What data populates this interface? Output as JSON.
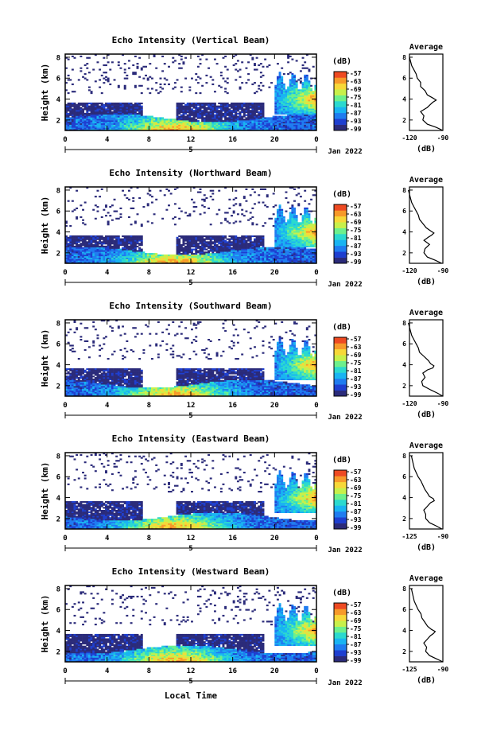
{
  "colors": {
    "colormap": [
      "#2b2b7a",
      "#1e3fd0",
      "#1f7cf0",
      "#19b4f2",
      "#2bd9cf",
      "#6df08c",
      "#c8f04a",
      "#f7d838",
      "#f79a2a",
      "#ee4a22"
    ],
    "background": "#ffffff",
    "ink": "#000000"
  },
  "footer": {
    "xlabel": "Local Time"
  },
  "chart_data": [
    {
      "type": "heatmap",
      "title": "Echo Intensity (Vertical Beam)",
      "ylabel": "Height (km)",
      "xlim": [
        0,
        24
      ],
      "ylim": [
        1,
        8.3
      ],
      "xticks": [
        "0",
        "4",
        "8",
        "12",
        "16",
        "20",
        "0"
      ],
      "yticks": [
        "2",
        "4",
        "6",
        "8"
      ],
      "date_marker": "5",
      "date_label": "Jan 2022",
      "colorbar": {
        "label": "(dB)",
        "ticks": [
          "-57",
          "-63",
          "-69",
          "-75",
          "-81",
          "-87",
          "-93",
          "-99"
        ],
        "range": [
          -99,
          -57
        ]
      },
      "profile": {
        "title": "Average",
        "xlabel": "(dB)",
        "xticks": [
          "-120",
          "-90"
        ],
        "xlim": [
          -120,
          -90
        ],
        "ylim": [
          1,
          8.3
        ],
        "yticks": [
          "2",
          "4",
          "6",
          "8"
        ],
        "heights": [
          1.0,
          1.3,
          1.6,
          2.0,
          2.4,
          2.8,
          3.2,
          3.5,
          3.7,
          3.9,
          4.1,
          4.4,
          4.8,
          5.2,
          5.6,
          6.0,
          6.4,
          6.8,
          7.2,
          7.6,
          8.0
        ],
        "values": [
          -90,
          -96,
          -104,
          -108,
          -107,
          -110,
          -104,
          -101,
          -99,
          -96,
          -99,
          -104,
          -106,
          -110,
          -110,
          -113,
          -114,
          -116,
          -118,
          -119,
          -120
        ]
      }
    },
    {
      "type": "heatmap",
      "title": "Echo Intensity (Northward Beam)",
      "ylabel": "Height (km)",
      "xlim": [
        0,
        24
      ],
      "ylim": [
        1,
        8.3
      ],
      "xticks": [
        "0",
        "4",
        "8",
        "12",
        "16",
        "20",
        "0"
      ],
      "yticks": [
        "2",
        "4",
        "6",
        "8"
      ],
      "date_marker": "5",
      "date_label": "Jan 2022",
      "colorbar": {
        "label": "(dB)",
        "ticks": [
          "-57",
          "-63",
          "-69",
          "-75",
          "-81",
          "-87",
          "-93",
          "-99"
        ],
        "range": [
          -99,
          -57
        ]
      },
      "profile": {
        "title": "Average",
        "xlabel": "(dB)",
        "xticks": [
          "-120",
          "-90"
        ],
        "xlim": [
          -120,
          -90
        ],
        "ylim": [
          1,
          8.3
        ],
        "yticks": [
          "2",
          "4",
          "6",
          "8"
        ],
        "heights": [
          1.0,
          1.3,
          1.6,
          2.0,
          2.4,
          2.8,
          3.2,
          3.5,
          3.7,
          3.9,
          4.1,
          4.4,
          4.8,
          5.2,
          5.6,
          6.0,
          6.4,
          6.8,
          7.2,
          7.6,
          8.0
        ],
        "values": [
          -91,
          -97,
          -104,
          -107,
          -106,
          -102,
          -107,
          -103,
          -100,
          -98,
          -101,
          -105,
          -108,
          -111,
          -112,
          -114,
          -116,
          -118,
          -119,
          -120,
          -121
        ]
      }
    },
    {
      "type": "heatmap",
      "title": "Echo Intensity (Southward Beam)",
      "ylabel": "Height (km)",
      "xlim": [
        0,
        24
      ],
      "ylim": [
        1,
        8.3
      ],
      "xticks": [
        "0",
        "4",
        "8",
        "12",
        "16",
        "20",
        "0"
      ],
      "yticks": [
        "2",
        "4",
        "6",
        "8"
      ],
      "date_marker": "5",
      "date_label": "Jan 2022",
      "colorbar": {
        "label": "(dB)",
        "ticks": [
          "-57",
          "-63",
          "-69",
          "-75",
          "-81",
          "-87",
          "-93",
          "-99"
        ],
        "range": [
          -99,
          -57
        ]
      },
      "profile": {
        "title": "Average",
        "xlabel": "(dB)",
        "xticks": [
          "-120",
          "-90"
        ],
        "xlim": [
          -120,
          -90
        ],
        "ylim": [
          1,
          8.3
        ],
        "yticks": [
          "2",
          "4",
          "6",
          "8"
        ],
        "heights": [
          1.0,
          1.3,
          1.6,
          2.0,
          2.4,
          2.8,
          3.2,
          3.5,
          3.7,
          3.9,
          4.1,
          4.4,
          4.8,
          5.2,
          5.6,
          6.0,
          6.4,
          6.8,
          7.2,
          7.6,
          8.0
        ],
        "values": [
          -90,
          -95,
          -101,
          -108,
          -109,
          -106,
          -108,
          -104,
          -99,
          -98,
          -101,
          -103,
          -107,
          -111,
          -112,
          -114,
          -116,
          -118,
          -119,
          -120,
          -121
        ]
      }
    },
    {
      "type": "heatmap",
      "title": "Echo Intensity (Eastward Beam)",
      "ylabel": "Height (km)",
      "xlim": [
        0,
        24
      ],
      "ylim": [
        1,
        8.3
      ],
      "xticks": [
        "0",
        "4",
        "8",
        "12",
        "16",
        "20",
        "0"
      ],
      "yticks": [
        "2",
        "4",
        "6",
        "8"
      ],
      "date_marker": "5",
      "date_label": "Jan 2022",
      "colorbar": {
        "label": "(dB)",
        "ticks": [
          "-57",
          "-63",
          "-69",
          "-75",
          "-81",
          "-87",
          "-93",
          "-99"
        ],
        "range": [
          -99,
          -57
        ]
      },
      "profile": {
        "title": "Average",
        "xlabel": "(dB)",
        "xticks": [
          "-125",
          "-90"
        ],
        "xlim": [
          -125,
          -90
        ],
        "ylim": [
          1,
          8.3
        ],
        "yticks": [
          "2",
          "4",
          "6",
          "8"
        ],
        "heights": [
          1.0,
          1.3,
          1.6,
          2.0,
          2.4,
          2.8,
          3.2,
          3.5,
          3.7,
          3.9,
          4.1,
          4.4,
          4.8,
          5.2,
          5.6,
          6.0,
          6.4,
          6.8,
          7.2,
          7.6,
          8.0
        ],
        "values": [
          -91,
          -97,
          -104,
          -108,
          -108,
          -110,
          -106,
          -103,
          -99,
          -100,
          -104,
          -106,
          -109,
          -111,
          -113,
          -116,
          -118,
          -120,
          -121,
          -122,
          -123
        ]
      }
    },
    {
      "type": "heatmap",
      "title": "Echo Intensity (Westward Beam)",
      "ylabel": "Height (km)",
      "xlim": [
        0,
        24
      ],
      "ylim": [
        1,
        8.3
      ],
      "xticks": [
        "0",
        "4",
        "8",
        "12",
        "16",
        "20",
        "0"
      ],
      "yticks": [
        "2",
        "4",
        "6",
        "8"
      ],
      "date_marker": "5",
      "date_label": "Jan 2022",
      "colorbar": {
        "label": "(dB)",
        "ticks": [
          "-57",
          "-63",
          "-69",
          "-75",
          "-81",
          "-87",
          "-93",
          "-99"
        ],
        "range": [
          -99,
          -57
        ]
      },
      "profile": {
        "title": "Average",
        "xlabel": "(dB)",
        "xticks": [
          "-125",
          "-90"
        ],
        "xlim": [
          -125,
          -90
        ],
        "ylim": [
          1,
          8.3
        ],
        "yticks": [
          "2",
          "4",
          "6",
          "8"
        ],
        "heights": [
          1.0,
          1.3,
          1.6,
          2.0,
          2.4,
          2.8,
          3.2,
          3.5,
          3.7,
          3.9,
          4.1,
          4.4,
          4.8,
          5.2,
          5.6,
          6.0,
          6.4,
          6.8,
          7.2,
          7.6,
          8.0
        ],
        "values": [
          -90,
          -97,
          -104,
          -108,
          -107,
          -110,
          -106,
          -103,
          -100,
          -98,
          -102,
          -106,
          -109,
          -112,
          -113,
          -116,
          -118,
          -120,
          -121,
          -122,
          -123
        ]
      }
    }
  ]
}
